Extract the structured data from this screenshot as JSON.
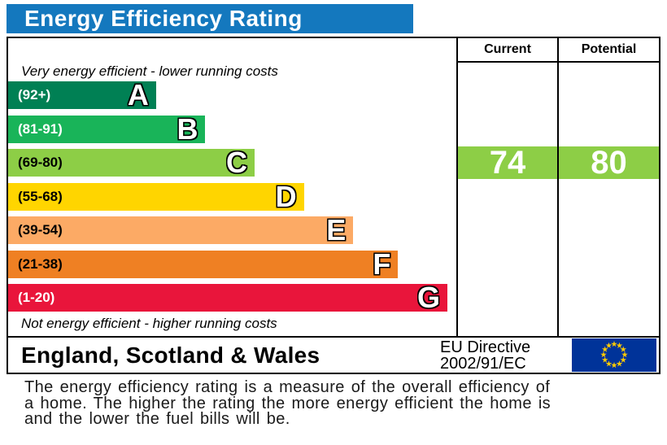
{
  "colors": {
    "title_bar": "#1478be",
    "border": "#000000",
    "flag_blue": "#003399",
    "flag_stars": "#ffcc00"
  },
  "notes": {
    "top": "Very energy efficient - lower running costs",
    "bottom": "Not energy efficient - higher running costs"
  },
  "chart_data": {
    "type": "bar",
    "title": "Energy Efficiency Rating",
    "bands": [
      {
        "letter": "A",
        "range_label": "(92+)",
        "min": 92,
        "max": 100,
        "color": "#008054",
        "label_color": "#ffffff",
        "width_pct": 33
      },
      {
        "letter": "B",
        "range_label": "(81-91)",
        "min": 81,
        "max": 91,
        "color": "#19b459",
        "label_color": "#ffffff",
        "width_pct": 44
      },
      {
        "letter": "C",
        "range_label": "(69-80)",
        "min": 69,
        "max": 80,
        "color": "#8dce46",
        "label_color": "#000000",
        "width_pct": 55
      },
      {
        "letter": "D",
        "range_label": "(55-68)",
        "min": 55,
        "max": 68,
        "color": "#ffd500",
        "label_color": "#000000",
        "width_pct": 66
      },
      {
        "letter": "E",
        "range_label": "(39-54)",
        "min": 39,
        "max": 54,
        "color": "#fcaa65",
        "label_color": "#000000",
        "width_pct": 77
      },
      {
        "letter": "F",
        "range_label": "(21-38)",
        "min": 21,
        "max": 38,
        "color": "#ef8023",
        "label_color": "#000000",
        "width_pct": 87
      },
      {
        "letter": "G",
        "range_label": "(1-20)",
        "min": 1,
        "max": 20,
        "color": "#e9153b",
        "label_color": "#ffffff",
        "width_pct": 98
      }
    ],
    "current": {
      "label": "Current",
      "value": 74,
      "band": "C",
      "color": "#8dce46"
    },
    "potential": {
      "label": "Potential",
      "value": 80,
      "band": "C",
      "color": "#8dce46"
    }
  },
  "footer": {
    "region": "England, Scotland & Wales",
    "directive_line1": "EU Directive",
    "directive_line2": "2002/91/EC"
  },
  "description": "The energy efficiency rating is a measure of the overall efficiency of a home. The higher the rating the more energy efficient the home is and the lower the fuel bills will be."
}
